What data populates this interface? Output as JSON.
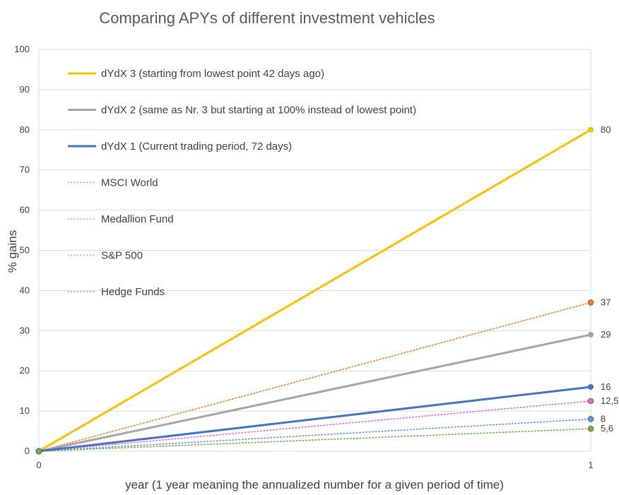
{
  "chart_data": {
    "type": "line",
    "title": "Comparing APYs of different investment vehicles",
    "xlabel": "year (1 year meaning the annualized number for a given period of time)",
    "ylabel": "% gains",
    "x": [
      0,
      1
    ],
    "x_ticks": [
      "0",
      "1"
    ],
    "xlim": [
      0,
      1
    ],
    "ylim": [
      0,
      100
    ],
    "y_ticks": [
      "0",
      "10",
      "20",
      "30",
      "40",
      "50",
      "60",
      "70",
      "80",
      "90",
      "100"
    ],
    "grid": true,
    "legend_position": "top-left inside plot",
    "series": [
      {
        "name": "dYdX 3 (starting from lowest point 42 days ago)",
        "values": [
          0,
          80
        ],
        "color": "#FFC000",
        "style": "solid",
        "end_label": "80"
      },
      {
        "name": "dYdX 2 (same as Nr. 3 but starting at 100% instead of lowest point)",
        "values": [
          0,
          29
        ],
        "color": "#A5A5A5",
        "style": "solid",
        "end_label": "29"
      },
      {
        "name": "dYdX 1 (Current trading period, 72 days)",
        "values": [
          0,
          16
        ],
        "color": "#4472C4",
        "style": "solid",
        "end_label": "16"
      },
      {
        "name": "MSCI World",
        "values": [
          0,
          8
        ],
        "color": "#5B9BD5",
        "style": "dotted",
        "end_label": "8"
      },
      {
        "name": "Medallion Fund",
        "values": [
          0,
          37
        ],
        "color": "#ED7D31",
        "style": "dotted",
        "end_label": "37"
      },
      {
        "name": "S&P 500",
        "values": [
          0,
          12.5
        ],
        "color": "#E76BC8",
        "style": "dotted",
        "end_label": "12,5"
      },
      {
        "name": "Hedge Funds",
        "values": [
          0,
          5.6
        ],
        "color": "#70AD47",
        "style": "dotted",
        "end_label": "5,6"
      }
    ]
  }
}
